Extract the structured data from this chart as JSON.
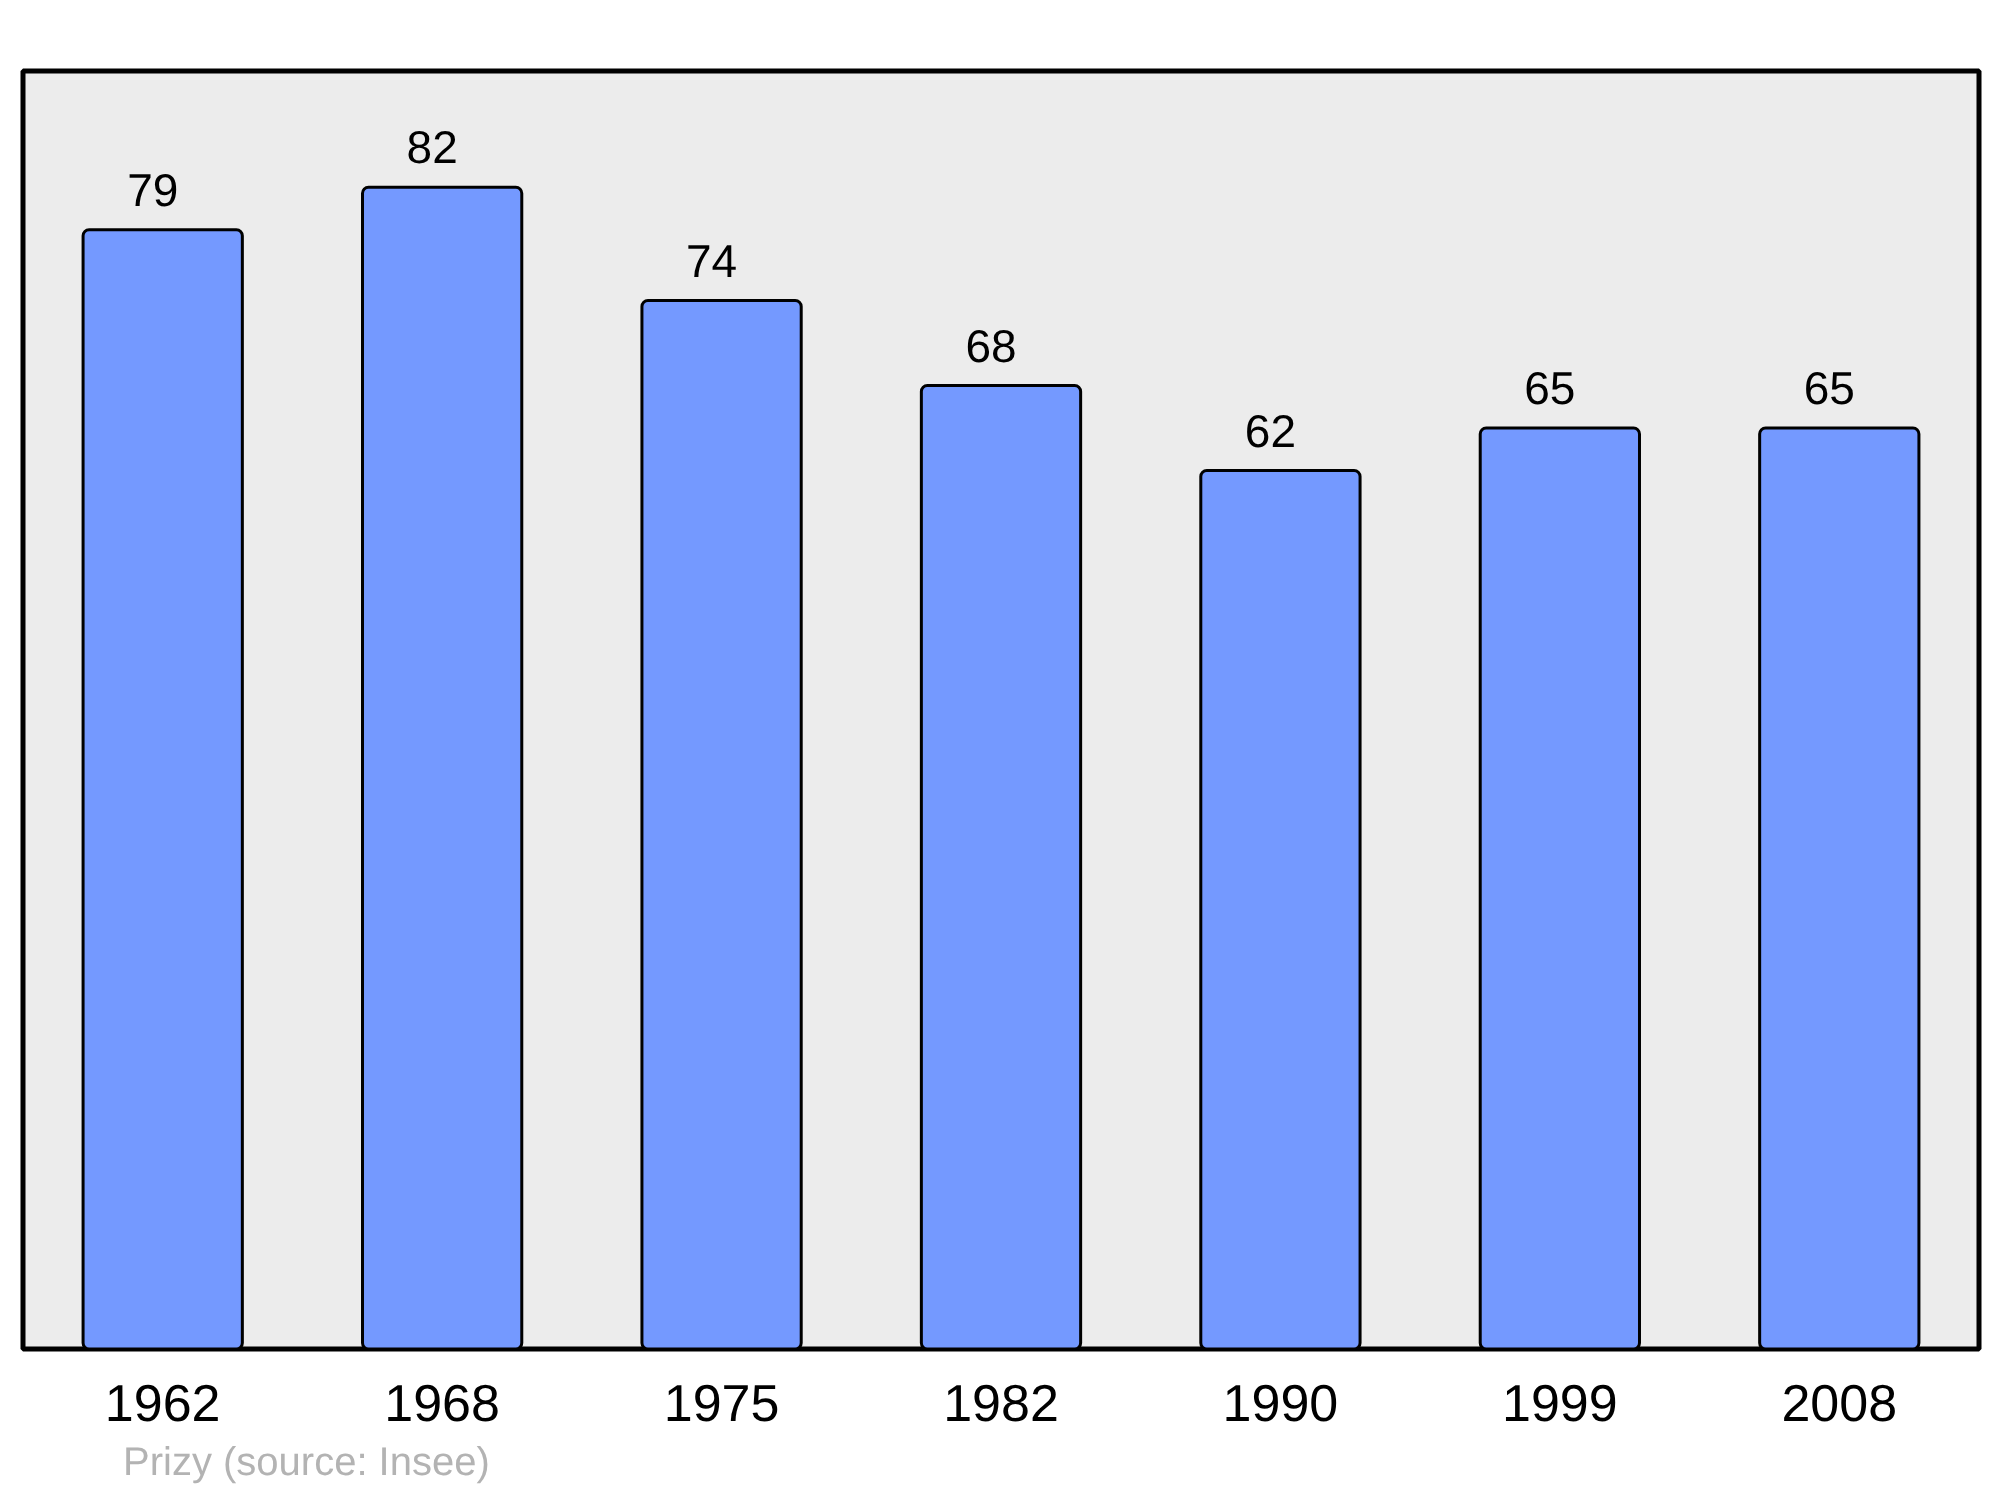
{
  "chart_data": {
    "type": "bar",
    "categories": [
      "1962",
      "1968",
      "1975",
      "1982",
      "1990",
      "1999",
      "2008"
    ],
    "values": [
      79,
      82,
      74,
      68,
      62,
      65,
      65
    ],
    "color": "#7499ff",
    "data_labels": true,
    "annotations": [
      "Prizy",
      "(source: Insee)"
    ]
  }
}
